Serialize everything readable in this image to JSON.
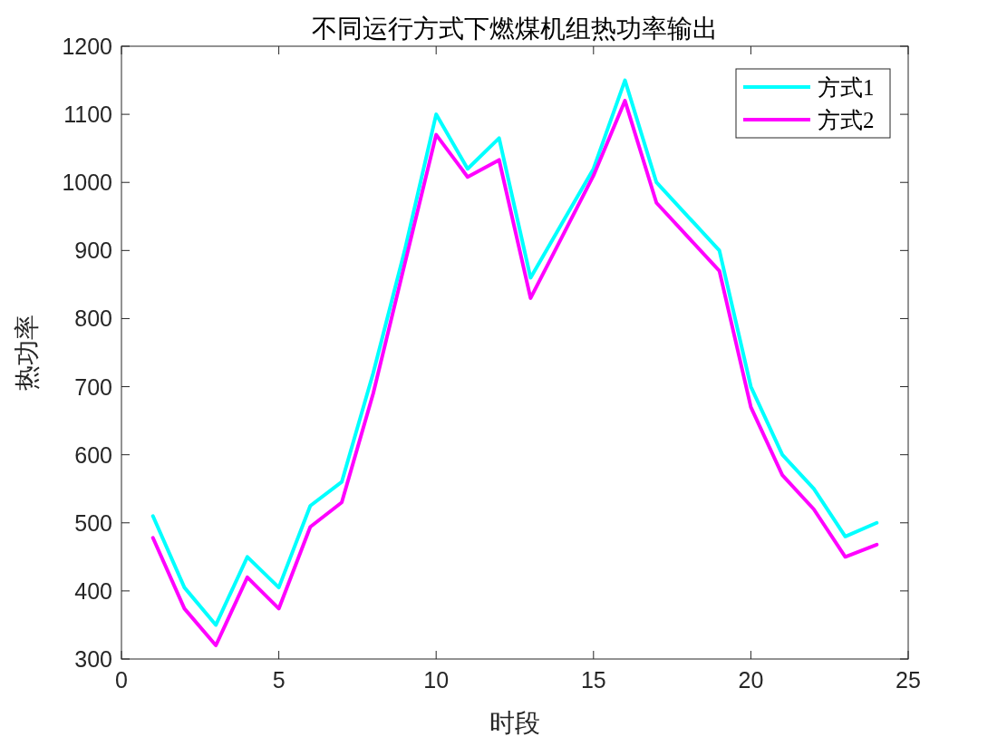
{
  "chart_data": {
    "type": "line",
    "title": "不同运行方式下燃煤机组热功率输出",
    "xlabel": "时段",
    "ylabel": "热功率",
    "x": [
      1,
      2,
      3,
      4,
      5,
      6,
      7,
      8,
      9,
      10,
      11,
      12,
      13,
      14,
      15,
      16,
      17,
      18,
      19,
      20,
      21,
      22,
      23,
      24
    ],
    "series": [
      {
        "name": "方式1",
        "color": "#00ffff",
        "values": [
          510,
          405,
          350,
          450,
          405,
          525,
          560,
          720,
          900,
          1100,
          1020,
          1065,
          860,
          940,
          1020,
          1150,
          1000,
          950,
          900,
          700,
          600,
          550,
          480,
          500
        ]
      },
      {
        "name": "方式2",
        "color": "#ff00ff",
        "values": [
          478,
          374,
          320,
          420,
          374,
          494,
          530,
          690,
          880,
          1070,
          1008,
          1033,
          830,
          920,
          1010,
          1120,
          970,
          920,
          870,
          670,
          570,
          520,
          450,
          468
        ]
      }
    ],
    "xlim": [
      0,
      25
    ],
    "xticks": [
      0,
      5,
      10,
      15,
      20,
      25
    ],
    "ylim": [
      300,
      1200
    ],
    "yticks": [
      300,
      400,
      500,
      600,
      700,
      800,
      900,
      1000,
      1100,
      1200
    ],
    "grid": false,
    "legend": "top right",
    "marker": "none",
    "line_style": "solid"
  }
}
